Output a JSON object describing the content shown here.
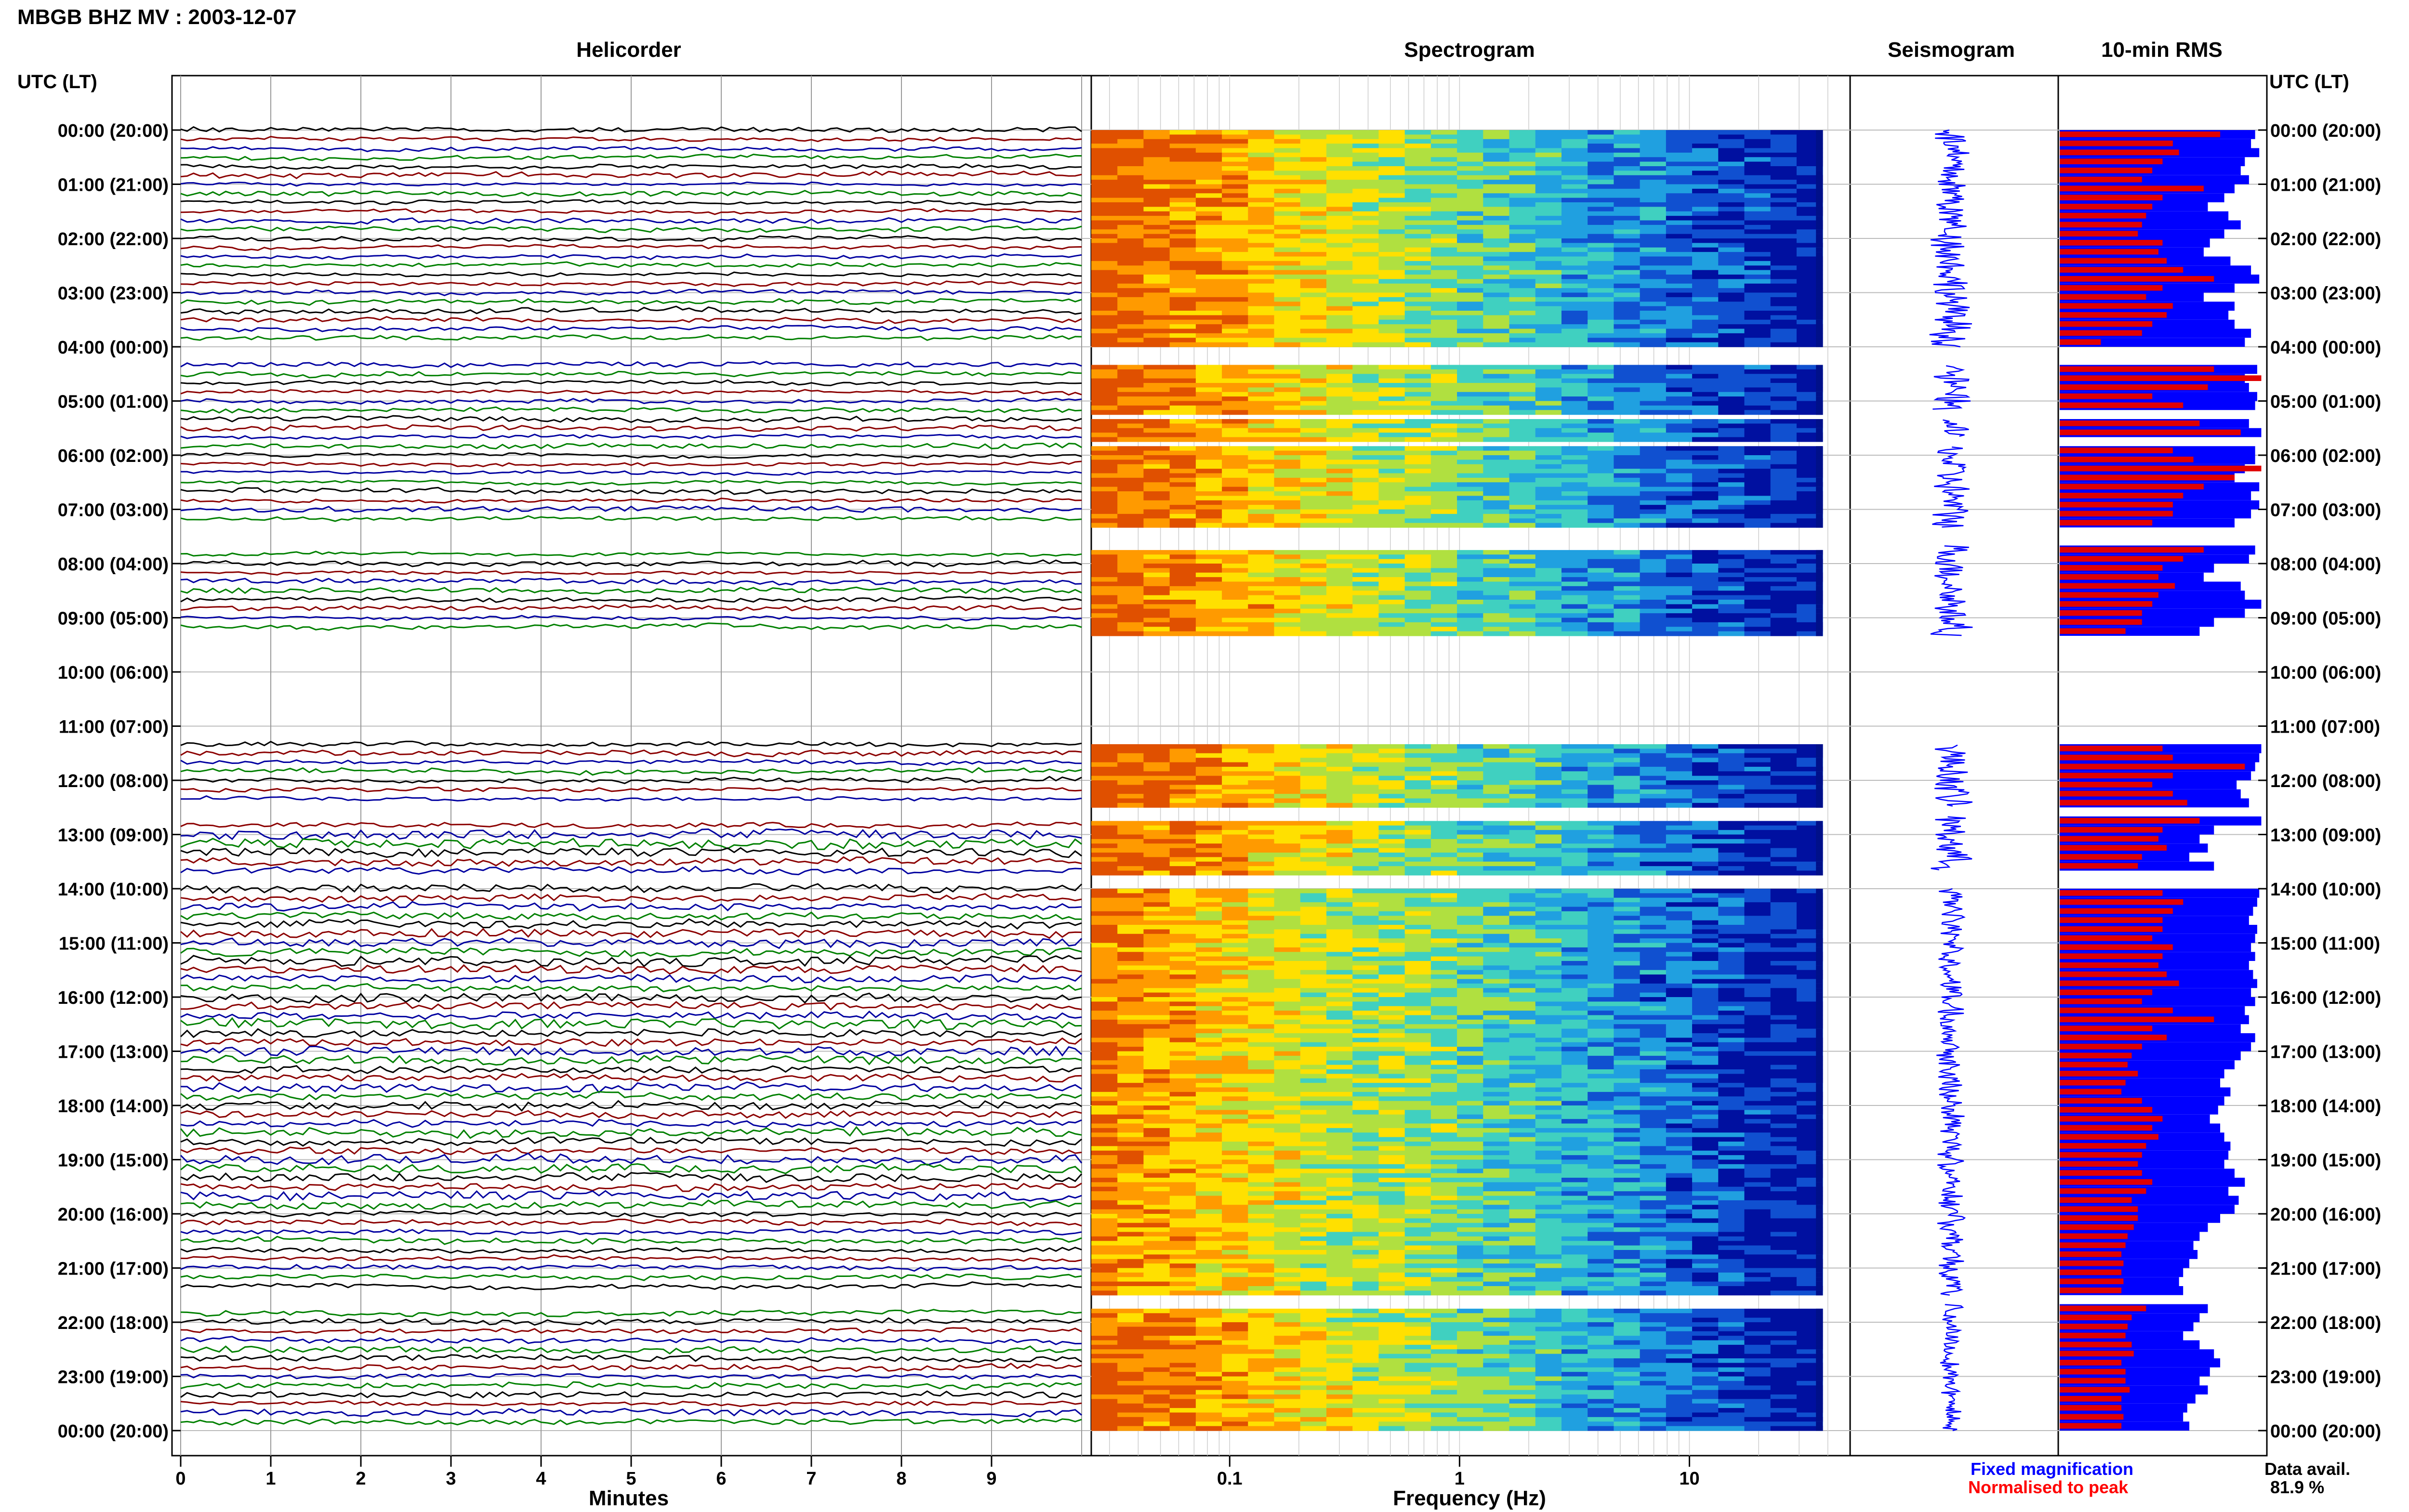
{
  "header": {
    "title": "MBGB BHZ MV : 2003-12-07"
  },
  "legend": {
    "fixed_label": "Fixed magnification",
    "normalised_label": "Normalised to peak",
    "avail_label": "Data avail.",
    "avail_value": "81.9 %",
    "fixed_color": "#0000ff",
    "normalised_color": "#ff0000"
  },
  "colors": {
    "helicorder_traces": [
      "#000000",
      "#8b0000",
      "#0000a0",
      "#008000"
    ],
    "rms_fixed": "#0000ff",
    "rms_normalised": "#e00000",
    "seismogram": "#0000ff",
    "spectrogram_scale": [
      "#e05000",
      "#ff9a00",
      "#ffe000",
      "#b0e040",
      "#40d0c0",
      "#20a0e0",
      "#1050d0",
      "#0010a0"
    ]
  },
  "chart_data": [
    {
      "type": "line",
      "panel": "helicorder",
      "title": "Helicorder",
      "xlabel": "Minutes",
      "ylabel": "UTC (LT)",
      "xticks": [
        "0",
        "1",
        "2",
        "3",
        "4",
        "5",
        "6",
        "7",
        "8",
        "9"
      ],
      "xlim": [
        0,
        10
      ],
      "hour_labels": [
        "00:00 (20:00)",
        "01:00 (21:00)",
        "02:00 (22:00)",
        "03:00 (23:00)",
        "04:00 (00:00)",
        "05:00 (01:00)",
        "06:00 (02:00)",
        "07:00 (03:00)",
        "08:00 (04:00)",
        "09:00 (05:00)",
        "10:00 (06:00)",
        "11:00 (07:00)",
        "12:00 (08:00)",
        "13:00 (09:00)",
        "14:00 (10:00)",
        "15:00 (11:00)",
        "16:00 (12:00)",
        "17:00 (13:00)",
        "18:00 (14:00)",
        "19:00 (15:00)",
        "20:00 (16:00)",
        "21:00 (17:00)",
        "22:00 (18:00)",
        "23:00 (19:00)",
        "00:00 (20:00)"
      ],
      "grid": true
    },
    {
      "type": "heatmap",
      "panel": "spectrogram",
      "title": "Spectrogram",
      "xlabel": "Frequency (Hz)",
      "xscale": "log",
      "xlim": [
        0.025,
        50
      ],
      "xticks": [
        "0.1",
        "1",
        "10"
      ]
    },
    {
      "type": "line",
      "panel": "seismogram",
      "title": "Seismogram"
    },
    {
      "type": "bar",
      "panel": "rms",
      "title": "10-min RMS",
      "ylabel": "UTC (LT)",
      "series": [
        {
          "name": "Fixed magnification",
          "color": "#0000ff"
        },
        {
          "name": "Normalised to peak",
          "color": "#ff0000"
        }
      ],
      "data_gaps_hours": [
        [
          4.0,
          4.33
        ],
        [
          5.17,
          5.33
        ],
        [
          5.67,
          5.83
        ],
        [
          7.33,
          7.67
        ],
        [
          9.33,
          11.33
        ],
        [
          12.5,
          12.67
        ],
        [
          13.67,
          14.0
        ],
        [
          21.5,
          21.67
        ]
      ],
      "fixed_values_per_hour": [
        [
          0.95,
          0.93,
          0.97,
          0.9,
          0.88,
          0.92
        ],
        [
          0.85,
          0.8,
          0.72,
          0.82,
          0.88,
          0.8
        ],
        [
          0.73,
          0.7,
          0.83,
          0.93,
          0.97,
          0.85
        ],
        [
          0.7,
          0.85,
          0.82,
          0.85,
          0.93,
          0.9
        ],
        [
          null,
          null,
          0.96,
          0.9,
          0.92,
          0.96
        ],
        [
          0.95,
          null,
          0.92,
          0.98,
          null,
          0.95
        ],
        [
          0.95,
          0.9,
          0.85,
          0.97,
          0.93,
          0.97
        ],
        [
          0.93,
          0.85,
          null,
          null,
          0.95,
          0.92
        ],
        [
          0.75,
          0.7,
          0.88,
          0.9,
          0.98,
          0.9
        ],
        [
          0.75,
          0.68,
          null,
          null,
          null,
          null
        ],
        [
          null,
          null,
          null,
          null,
          null,
          null
        ],
        [
          null,
          null,
          0.98,
          0.97,
          0.95,
          0.93
        ],
        [
          0.86,
          0.88,
          0.92,
          null,
          0.98,
          0.75
        ],
        [
          0.68,
          0.72,
          0.63,
          0.75,
          null,
          null
        ],
        [
          0.97,
          0.96,
          0.94,
          0.92,
          0.96,
          0.95
        ],
        [
          0.93,
          0.95,
          0.92,
          0.94,
          0.96,
          0.93
        ],
        [
          0.95,
          0.9,
          0.92,
          0.88,
          0.95,
          0.93
        ],
        [
          0.88,
          0.85,
          0.8,
          0.78,
          0.83,
          0.8
        ],
        [
          0.77,
          0.73,
          0.78,
          0.8,
          0.83,
          0.82
        ],
        [
          0.8,
          0.85,
          0.9,
          0.82,
          0.87,
          0.85
        ],
        [
          0.78,
          0.72,
          0.68,
          0.65,
          0.67,
          0.63
        ],
        [
          0.6,
          0.58,
          0.6,
          null,
          0.72,
          0.68
        ],
        [
          0.65,
          0.6,
          0.68,
          0.75,
          0.78,
          0.73
        ],
        [
          0.68,
          0.72,
          0.66,
          0.62,
          0.6,
          0.63
        ]
      ],
      "normalised_values_per_hour": [
        [
          0.78,
          0.55,
          0.58,
          0.5,
          0.45,
          0.4
        ],
        [
          0.7,
          0.5,
          0.45,
          0.42,
          0.4,
          0.38
        ],
        [
          0.5,
          0.48,
          0.52,
          0.6,
          0.75,
          0.5
        ],
        [
          0.42,
          0.55,
          0.52,
          0.45,
          0.4,
          0.2
        ],
        [
          null,
          null,
          0.75,
          0.98,
          0.72,
          0.45
        ],
        [
          0.6,
          null,
          0.68,
          0.88,
          null,
          0.55
        ],
        [
          0.65,
          0.98,
          0.85,
          0.7,
          0.6,
          0.55
        ],
        [
          0.55,
          0.45,
          null,
          null,
          0.7,
          0.6
        ],
        [
          0.5,
          0.48,
          0.56,
          0.48,
          0.45,
          0.4
        ],
        [
          0.4,
          0.32,
          null,
          null,
          null,
          null
        ],
        [
          null,
          null,
          null,
          null,
          null,
          null
        ],
        [
          null,
          null,
          0.5,
          0.55,
          0.9,
          0.55
        ],
        [
          0.45,
          0.55,
          0.62,
          null,
          0.68,
          0.5
        ],
        [
          0.48,
          0.52,
          0.4,
          0.38,
          null,
          null
        ],
        [
          0.5,
          0.6,
          0.55,
          0.5,
          0.5,
          0.45
        ],
        [
          0.55,
          0.5,
          0.48,
          0.52,
          0.58,
          0.45
        ],
        [
          0.4,
          0.55,
          0.75,
          0.45,
          0.52,
          0.4
        ],
        [
          0.35,
          0.33,
          0.38,
          0.32,
          0.3,
          0.4
        ],
        [
          0.45,
          0.5,
          0.45,
          0.48,
          0.42,
          0.4
        ],
        [
          0.38,
          0.4,
          0.45,
          0.42,
          0.35,
          0.38
        ],
        [
          0.38,
          0.36,
          0.33,
          0.32,
          0.3,
          0.31
        ],
        [
          0.3,
          0.31,
          0.3,
          null,
          0.42,
          0.35
        ],
        [
          0.33,
          0.32,
          0.35,
          0.36,
          0.3,
          0.32
        ],
        [
          0.32,
          0.34,
          0.3,
          0.3,
          0.31,
          0.3
        ]
      ]
    }
  ]
}
